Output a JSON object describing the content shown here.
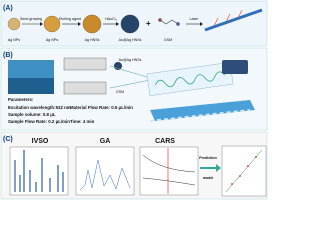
{
  "panel_a": {
    "label": "(A)",
    "steps": [
      "Seed growing",
      "Etching agent",
      "HAuCl₄",
      "Laser"
    ],
    "items": [
      "Ag NPs",
      "Ag NPs",
      "Ag HNSs",
      "Au@Ag HNSs",
      "GSM"
    ]
  },
  "panel_b": {
    "label": "(B)",
    "reagents": [
      "Au@Ag HNSs",
      "GSM"
    ],
    "parameters_title": "Parameters:",
    "parameters": [
      "Excitation wavelength:532 nm",
      "Material Flow Rate: 0.5 μL/min",
      "Sample Flow Rate: 0.2 μL/min",
      "Sample volume: 0.8 μL",
      "Time: 4 min"
    ]
  },
  "panel_c": {
    "label": "(C)",
    "methods": [
      "IVSO",
      "GA",
      "CARS"
    ],
    "prediction": [
      "Prediction",
      "model"
    ]
  }
}
